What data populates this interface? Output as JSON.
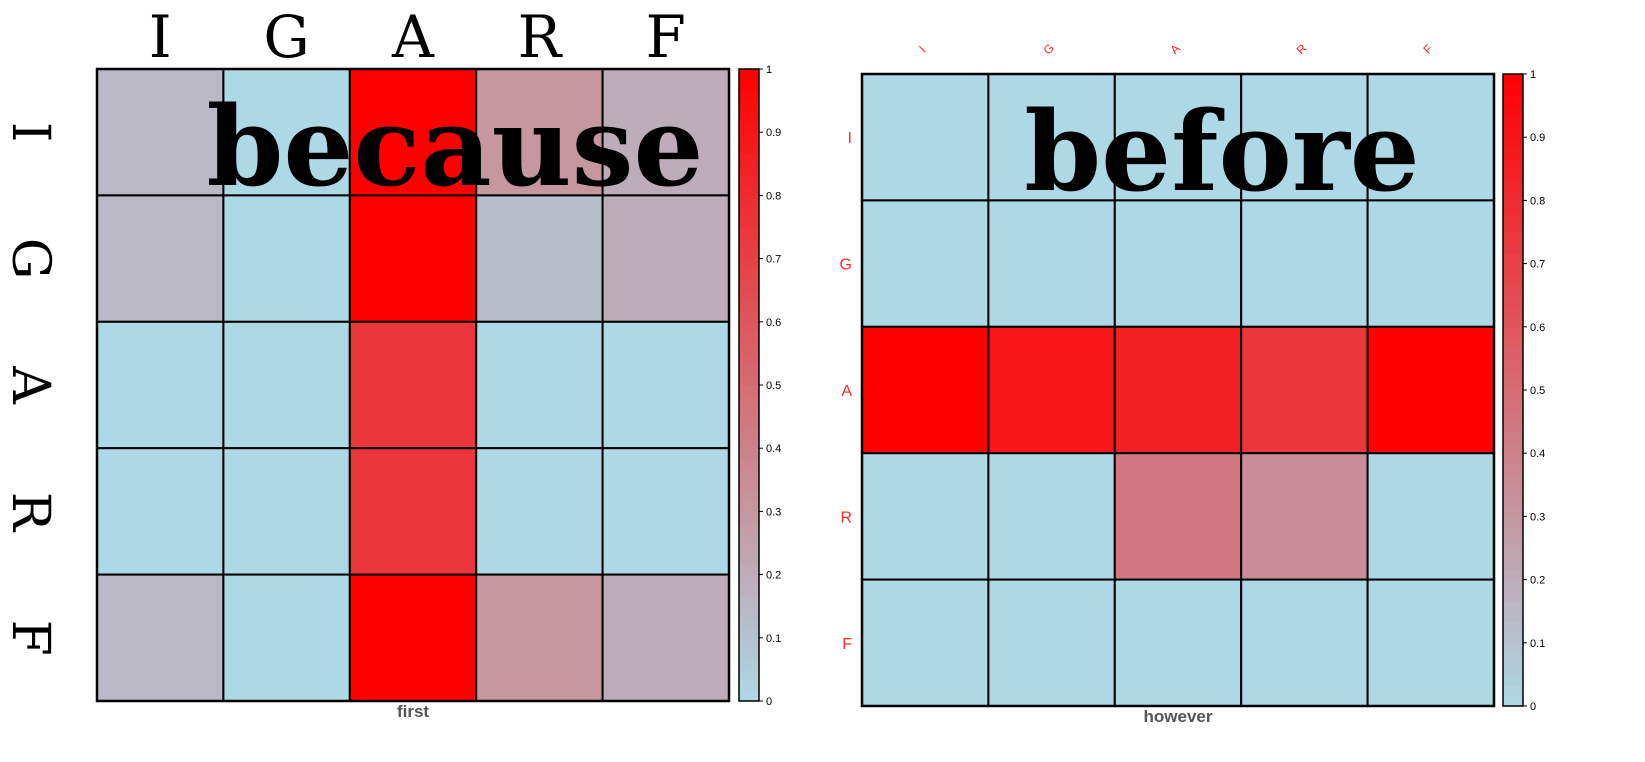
{
  "colors": {
    "low": "#add8e6",
    "high": "#ff0000",
    "grid": "#000000",
    "bigtext": "#000000",
    "small_label": "#ff2a2a"
  },
  "chart_data": [
    {
      "type": "heatmap",
      "title": "because",
      "xlabel": "first",
      "ylabel": "",
      "columns": [
        "I",
        "G",
        "A",
        "R",
        "F"
      ],
      "rows": [
        "I",
        "G",
        "A",
        "R",
        "F"
      ],
      "values": [
        [
          0.15,
          0.0,
          1.0,
          0.3,
          0.2
        ],
        [
          0.15,
          0.0,
          1.0,
          0.12,
          0.2
        ],
        [
          0.0,
          0.0,
          0.75,
          0.0,
          0.0
        ],
        [
          0.0,
          0.0,
          0.75,
          0.0,
          0.0
        ],
        [
          0.15,
          0.0,
          1.0,
          0.3,
          0.2
        ]
      ],
      "scale": {
        "min": 0,
        "max": 1,
        "ticks": [
          "0",
          "0.1",
          "0.2",
          "0.3",
          "0.4",
          "0.5",
          "0.6",
          "0.7",
          "0.8",
          "0.9",
          "1"
        ]
      }
    },
    {
      "type": "heatmap",
      "title": "before",
      "xlabel": "however",
      "ylabel": "",
      "columns": [
        "I",
        "G",
        "A",
        "R",
        "F"
      ],
      "rows": [
        "I",
        "G",
        "A",
        "R",
        "F"
      ],
      "values": [
        [
          0.0,
          0.0,
          0.0,
          0.0,
          0.0
        ],
        [
          0.0,
          0.0,
          0.0,
          0.0,
          0.0
        ],
        [
          1.0,
          0.9,
          0.85,
          0.75,
          1.0
        ],
        [
          0.0,
          0.0,
          0.45,
          0.35,
          0.0
        ],
        [
          0.0,
          0.0,
          0.0,
          0.0,
          0.0
        ]
      ],
      "scale": {
        "min": 0,
        "max": 1,
        "ticks": [
          "0",
          "0.1",
          "0.2",
          "0.3",
          "0.4",
          "0.5",
          "0.6",
          "0.7",
          "0.8",
          "0.9",
          "1"
        ]
      }
    }
  ]
}
